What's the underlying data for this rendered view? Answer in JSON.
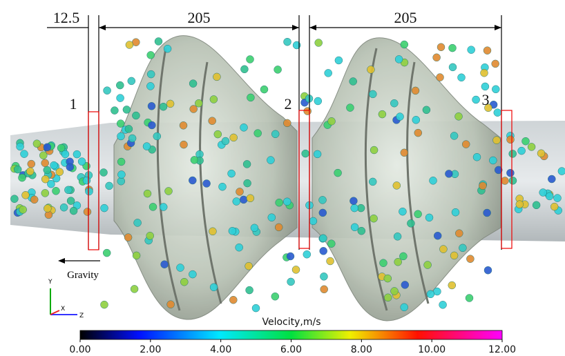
{
  "dimensions": {
    "inlet": "12.5",
    "stage_1": "205",
    "stage_2": "205"
  },
  "sections": [
    "1",
    "2",
    "3"
  ],
  "gravity": "Gravity",
  "axes": {
    "y": "Y",
    "x": "X",
    "z": "Z"
  },
  "colorbar": {
    "title": "Velocity,m/s",
    "range": [
      0,
      12
    ],
    "ticks": [
      {
        "value": 0,
        "label": "0.00"
      },
      {
        "value": 2,
        "label": "2.00"
      },
      {
        "value": 4,
        "label": "4.00"
      },
      {
        "value": 6,
        "label": "6.00"
      },
      {
        "value": 8,
        "label": "8.00"
      },
      {
        "value": 10,
        "label": "10.00"
      },
      {
        "value": 12,
        "label": "12.00"
      }
    ]
  }
}
